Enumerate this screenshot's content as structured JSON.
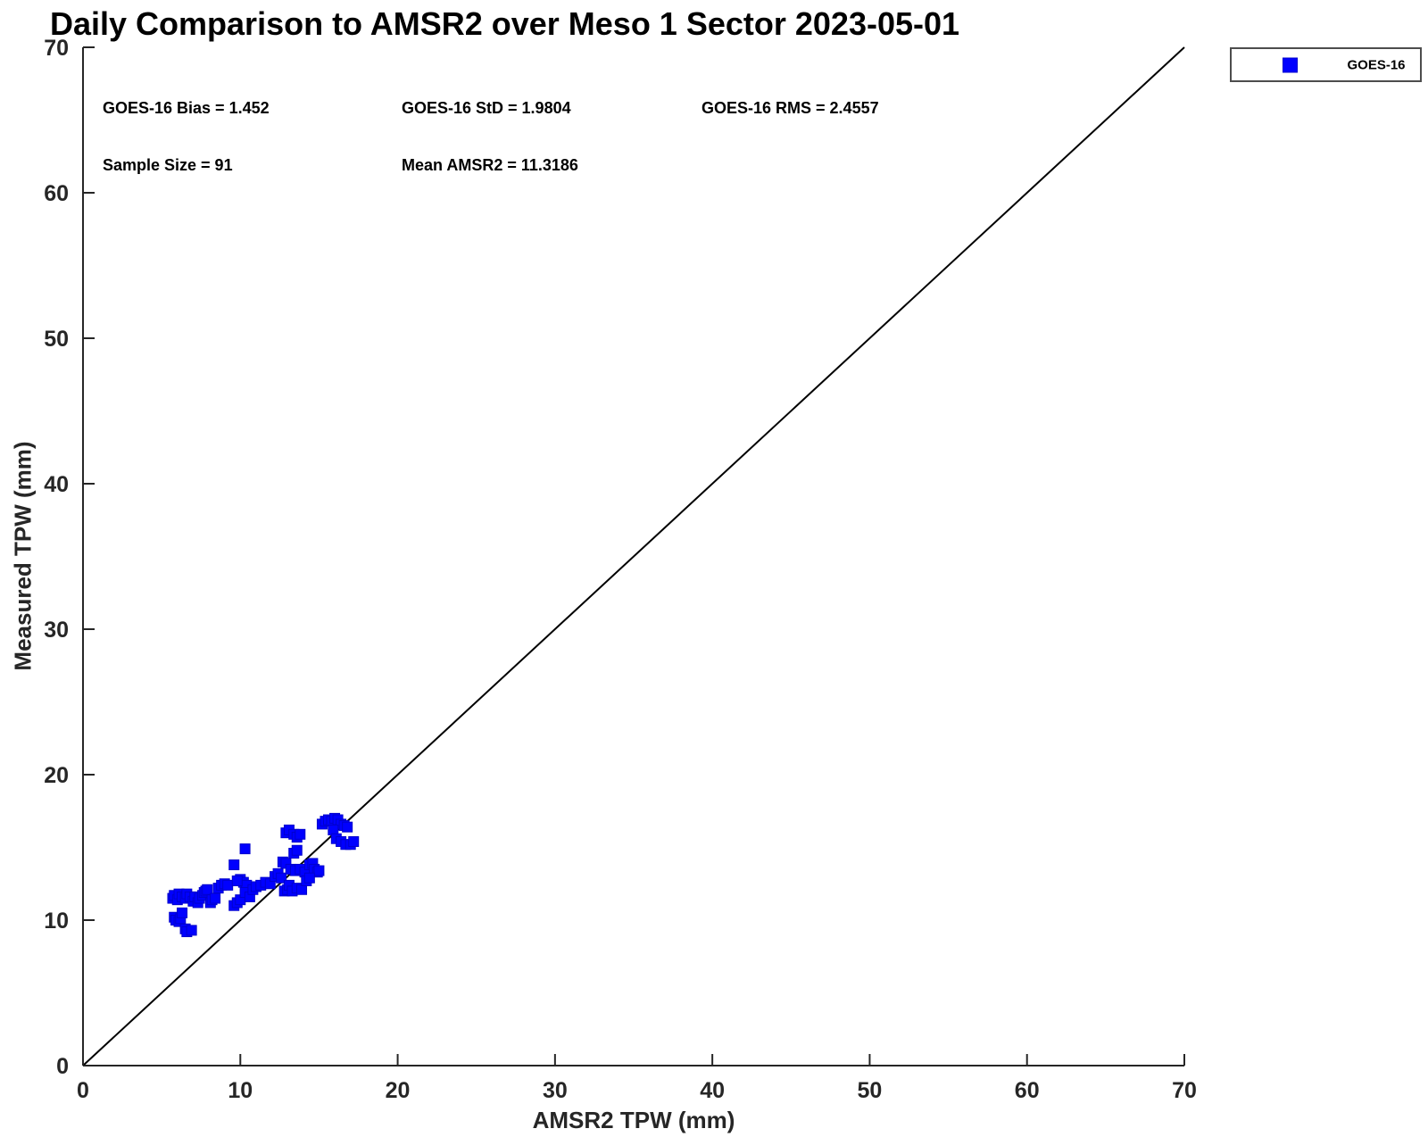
{
  "title": "Daily Comparison to AMSR2 over Meso 1 Sector 2023-05-01",
  "stats": {
    "bias": "GOES-16 Bias = 1.452",
    "std": "GOES-16 StD = 1.9804",
    "rms": "GOES-16 RMS = 2.4557",
    "sample_size": "Sample Size = 91",
    "mean_amsr2": "Mean AMSR2 = 11.3186"
  },
  "legend": {
    "items": [
      {
        "label": "GOES-16",
        "marker": "square-icon",
        "color": "#0000ff"
      }
    ]
  },
  "colors": {
    "background": "#ffffff",
    "axis": "#262626",
    "tick_label": "#262626",
    "identity_line": "#000000",
    "marker_fill": "#0000ff",
    "marker_edge": "#0000cc"
  },
  "chart_data": {
    "type": "scatter",
    "title": "Daily Comparison to AMSR2 over Meso 1 Sector 2023-05-01",
    "xlabel": "AMSR2 TPW (mm)",
    "ylabel": "Measured TPW (mm)",
    "xlim": [
      0,
      70
    ],
    "ylim": [
      0,
      70
    ],
    "x_ticks": [
      0,
      10,
      20,
      30,
      40,
      50,
      60,
      70
    ],
    "y_ticks": [
      0,
      10,
      20,
      30,
      40,
      50,
      60,
      70
    ],
    "grid": false,
    "identity_line": true,
    "legend_position": "outside-top-right",
    "stats": {
      "bias": 1.452,
      "std": 1.9804,
      "rms": 2.4557,
      "sample_size": 91,
      "mean_amsr2": 11.3186
    },
    "series": [
      {
        "name": "GOES-16",
        "marker": "square",
        "marker_size_px": 11,
        "color": "#0000ff",
        "edge_color": "#0000cc",
        "points": [
          [
            5.8,
            10.2
          ],
          [
            5.9,
            10.0
          ],
          [
            6.1,
            9.9
          ],
          [
            6.2,
            10.1
          ],
          [
            6.5,
            9.4
          ],
          [
            6.6,
            9.2
          ],
          [
            6.9,
            9.3
          ],
          [
            6.3,
            10.5
          ],
          [
            5.7,
            11.5
          ],
          [
            5.8,
            11.7
          ],
          [
            6.0,
            11.4
          ],
          [
            6.1,
            11.8
          ],
          [
            6.3,
            11.6
          ],
          [
            6.5,
            11.5
          ],
          [
            6.6,
            11.8
          ],
          [
            6.8,
            11.6
          ],
          [
            7.0,
            11.3
          ],
          [
            7.1,
            11.6
          ],
          [
            7.3,
            11.2
          ],
          [
            7.4,
            11.5
          ],
          [
            7.6,
            11.7
          ],
          [
            7.7,
            11.9
          ],
          [
            7.8,
            12.0
          ],
          [
            7.9,
            12.1
          ],
          [
            8.1,
            11.2
          ],
          [
            8.2,
            11.4
          ],
          [
            8.4,
            11.5
          ],
          [
            8.6,
            12.2
          ],
          [
            8.8,
            12.4
          ],
          [
            9.0,
            12.5
          ],
          [
            9.2,
            12.4
          ],
          [
            9.6,
            13.8
          ],
          [
            10.3,
            14.9
          ],
          [
            9.6,
            11.0
          ],
          [
            9.8,
            11.2
          ],
          [
            10.0,
            11.4
          ],
          [
            10.0,
            12.8
          ],
          [
            10.2,
            12.6
          ],
          [
            10.4,
            12.4
          ],
          [
            9.8,
            12.7
          ],
          [
            10.3,
            11.9
          ],
          [
            10.6,
            11.6
          ],
          [
            10.8,
            12.1
          ],
          [
            11.0,
            12.3
          ],
          [
            11.3,
            12.4
          ],
          [
            11.6,
            12.6
          ],
          [
            11.9,
            12.5
          ],
          [
            12.2,
            13.0
          ],
          [
            12.4,
            13.2
          ],
          [
            12.6,
            12.9
          ],
          [
            12.9,
            16.0
          ],
          [
            13.1,
            16.2
          ],
          [
            13.4,
            15.9
          ],
          [
            13.6,
            15.7
          ],
          [
            13.8,
            15.9
          ],
          [
            13.4,
            14.6
          ],
          [
            13.6,
            14.8
          ],
          [
            12.7,
            14.0
          ],
          [
            12.9,
            13.9
          ],
          [
            13.2,
            13.5
          ],
          [
            13.5,
            13.4
          ],
          [
            13.8,
            13.5
          ],
          [
            14.1,
            13.3
          ],
          [
            14.4,
            13.8
          ],
          [
            14.6,
            13.9
          ],
          [
            14.7,
            13.5
          ],
          [
            14.9,
            13.3
          ],
          [
            15.0,
            13.4
          ],
          [
            12.8,
            12.0
          ],
          [
            13.0,
            12.1
          ],
          [
            13.1,
            12.4
          ],
          [
            13.3,
            12.0
          ],
          [
            13.6,
            12.2
          ],
          [
            13.9,
            12.1
          ],
          [
            14.2,
            12.7
          ],
          [
            14.4,
            12.9
          ],
          [
            15.2,
            16.6
          ],
          [
            15.4,
            16.8
          ],
          [
            15.6,
            16.9
          ],
          [
            15.8,
            16.8
          ],
          [
            16.0,
            17.0
          ],
          [
            16.2,
            16.9
          ],
          [
            16.4,
            16.6
          ],
          [
            16.6,
            16.5
          ],
          [
            16.8,
            16.4
          ],
          [
            15.9,
            16.2
          ],
          [
            16.1,
            15.6
          ],
          [
            16.4,
            15.4
          ],
          [
            16.7,
            15.2
          ],
          [
            17.0,
            15.2
          ],
          [
            17.2,
            15.4
          ]
        ]
      }
    ]
  }
}
